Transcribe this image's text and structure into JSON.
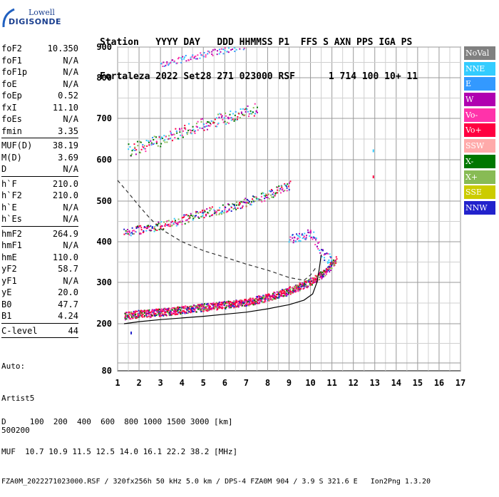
{
  "logo": {
    "line1": "Lowell",
    "line2": "DIGISONDE"
  },
  "header": {
    "line1": "Station   YYYY DAY   DDD HHMMSS P1  FFS S AXN PPS IGA PS",
    "line2": "Fortaleza 2022 Set28 271 023000 RSF      1 714 100 10+ 11"
  },
  "params": {
    "group1": [
      {
        "k": "foF2",
        "v": "10.350"
      },
      {
        "k": "foF1",
        "v": "N/A"
      },
      {
        "k": "foF1p",
        "v": "N/A"
      },
      {
        "k": "foE",
        "v": "N/A"
      },
      {
        "k": "foEp",
        "v": "0.52"
      },
      {
        "k": "fxI",
        "v": "11.10"
      },
      {
        "k": "foEs",
        "v": "N/A"
      },
      {
        "k": "fmin",
        "v": "3.35"
      }
    ],
    "group2": [
      {
        "k": "MUF(D)",
        "v": "38.19"
      },
      {
        "k": "M(D)",
        "v": "3.69"
      },
      {
        "k": "D",
        "v": "N/A"
      }
    ],
    "group3": [
      {
        "k": "h`F",
        "v": "210.0"
      },
      {
        "k": "h`F2",
        "v": "210.0"
      },
      {
        "k": "h`E",
        "v": "N/A"
      },
      {
        "k": "h`Es",
        "v": "N/A"
      }
    ],
    "group4": [
      {
        "k": "hmF2",
        "v": "264.9"
      },
      {
        "k": "hmF1",
        "v": "N/A"
      },
      {
        "k": "hmE",
        "v": "110.0"
      },
      {
        "k": "yF2",
        "v": "58.7"
      },
      {
        "k": "yF1",
        "v": "N/A"
      },
      {
        "k": "yE",
        "v": "20.0"
      },
      {
        "k": "B0",
        "v": "47.7"
      },
      {
        "k": "B1",
        "v": "4.24"
      }
    ],
    "clevel": {
      "k": "C-level",
      "v": "44"
    },
    "auto": [
      "Auto:",
      "Artist5",
      "500200"
    ]
  },
  "legend": [
    {
      "label": "NoVal",
      "color": "#808080"
    },
    {
      "label": "NNE",
      "color": "#33ccff"
    },
    {
      "label": "E",
      "color": "#3399ff"
    },
    {
      "label": "W",
      "color": "#b000b0"
    },
    {
      "label": "Vo-",
      "color": "#ff33aa"
    },
    {
      "label": "Vo+",
      "color": "#ff0040"
    },
    {
      "label": "SSW",
      "color": "#ffaaaa"
    },
    {
      "label": "X-",
      "color": "#007700"
    },
    {
      "label": "X+",
      "color": "#88bb55"
    },
    {
      "label": "SSE",
      "color": "#cccc00"
    },
    {
      "label": "NNW",
      "color": "#2222cc"
    }
  ],
  "footer": {
    "line1": "D     100  200  400  600  800 1000 1500 3000 [km]",
    "line2": "MUF  10.7 10.9 11.5 12.5 14.0 16.1 22.2 38.2 [MHz]",
    "line3": "FZA0M_2022271023000.RSF / 320fx256h 50 kHz 5.0 km / DPS-4 FZA0M 904 / 3.9 S 321.6 E   Ion2Png 1.3.20"
  },
  "chart_data": {
    "type": "scatter",
    "x_ticks": [
      "1",
      "2",
      "3",
      "4",
      "5",
      "6",
      "7",
      "8",
      "9",
      "10",
      "11",
      "12",
      "13",
      "14",
      "15",
      "16",
      "17"
    ],
    "y_ticks": [
      "80",
      "200",
      "300",
      "400",
      "500",
      "600",
      "700",
      "800",
      "900"
    ],
    "y_tick_values": [
      80,
      200,
      300,
      400,
      500,
      600,
      700,
      800,
      900
    ],
    "xlim": [
      1,
      17
    ],
    "ylim": [
      80,
      900
    ],
    "grid": true,
    "legend_position": "right",
    "traces": [
      {
        "series": "F2 O-trace (1st hop)",
        "points": [
          [
            1.3,
            218
          ],
          [
            2,
            222
          ],
          [
            3,
            226
          ],
          [
            4,
            232
          ],
          [
            5,
            238
          ],
          [
            6,
            244
          ],
          [
            7,
            250
          ],
          [
            8,
            262
          ],
          [
            9,
            278
          ],
          [
            10,
            300
          ],
          [
            10.6,
            320
          ],
          [
            11.2,
            355
          ]
        ]
      },
      {
        "series": "F2 2nd hop",
        "points": [
          [
            1.3,
            420
          ],
          [
            2,
            428
          ],
          [
            3,
            438
          ],
          [
            4,
            452
          ],
          [
            5,
            468
          ],
          [
            6,
            480
          ],
          [
            7,
            495
          ],
          [
            8,
            512
          ],
          [
            9,
            535
          ]
        ]
      },
      {
        "series": "F2 3rd hop",
        "points": [
          [
            1.5,
            620
          ],
          [
            2.5,
            635
          ],
          [
            3.5,
            655
          ],
          [
            4.5,
            675
          ],
          [
            5.5,
            690
          ],
          [
            6.5,
            705
          ],
          [
            7.5,
            720
          ]
        ]
      },
      {
        "series": "F2 4th hop",
        "points": [
          [
            3,
            840
          ],
          [
            4,
            860
          ],
          [
            5,
            875
          ],
          [
            6,
            888
          ],
          [
            7,
            898
          ]
        ]
      },
      {
        "series": "high-frequency spread",
        "points": [
          [
            9,
            400
          ],
          [
            9.5,
            410
          ],
          [
            10,
            420
          ],
          [
            10.5,
            370
          ],
          [
            11,
            350
          ]
        ]
      }
    ],
    "profile_curve": [
      [
        1.3,
        200
      ],
      [
        2,
        205
      ],
      [
        3,
        210
      ],
      [
        4,
        214
      ],
      [
        5,
        218
      ],
      [
        6,
        223
      ],
      [
        7,
        228
      ],
      [
        8,
        236
      ],
      [
        9,
        246
      ],
      [
        9.7,
        257
      ],
      [
        10.1,
        272
      ],
      [
        10.3,
        300
      ],
      [
        10.4,
        330
      ],
      [
        10.5,
        368
      ]
    ],
    "muf_curve": [
      [
        1,
        550
      ],
      [
        1.5,
        520
      ],
      [
        2,
        488
      ],
      [
        2.5,
        458
      ],
      [
        3,
        432
      ],
      [
        4,
        400
      ],
      [
        5,
        378
      ],
      [
        6,
        362
      ],
      [
        7,
        345
      ],
      [
        8,
        330
      ],
      [
        9,
        312
      ],
      [
        9.7,
        305
      ],
      [
        10,
        318
      ],
      [
        10.3,
        340
      ]
    ],
    "isolated_points": [
      [
        1.6,
        180
      ],
      [
        12.9,
        625
      ],
      [
        12.9,
        562
      ]
    ]
  }
}
